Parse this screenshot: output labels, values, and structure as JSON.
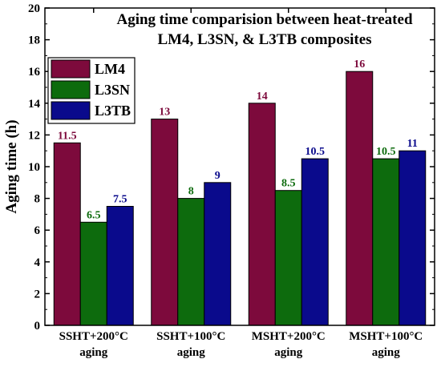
{
  "chart_data": {
    "type": "bar",
    "title_lines": [
      "Aging time comparision between heat-treated",
      "LM4, L3SN, & L3TB composites"
    ],
    "ylabel": "Aging time (h)",
    "xlabel": "",
    "ylim": [
      0,
      20
    ],
    "yticks": [
      0,
      2,
      4,
      6,
      8,
      10,
      12,
      14,
      16,
      18,
      20
    ],
    "grid": false,
    "legend_position": "top-left",
    "categories": [
      [
        "SSHT+200°C",
        "aging"
      ],
      [
        "SSHT+100°C",
        "aging"
      ],
      [
        "MSHT+200°C",
        "aging"
      ],
      [
        "MSHT+100°C",
        "aging"
      ]
    ],
    "series": [
      {
        "name": "LM4",
        "color": "#7d0a3c",
        "values": [
          11.5,
          13,
          14,
          16
        ],
        "labels": [
          "11.5",
          "13",
          "14",
          "16"
        ]
      },
      {
        "name": "L3SN",
        "color": "#0d6b0d",
        "values": [
          6.5,
          8,
          8.5,
          10.5
        ],
        "labels": [
          "6.5",
          "8",
          "8.5",
          "10.5"
        ]
      },
      {
        "name": "L3TB",
        "color": "#0a0a8c",
        "values": [
          7.5,
          9,
          10.5,
          11
        ],
        "labels": [
          "7.5",
          "9",
          "10.5",
          "11"
        ]
      }
    ]
  }
}
